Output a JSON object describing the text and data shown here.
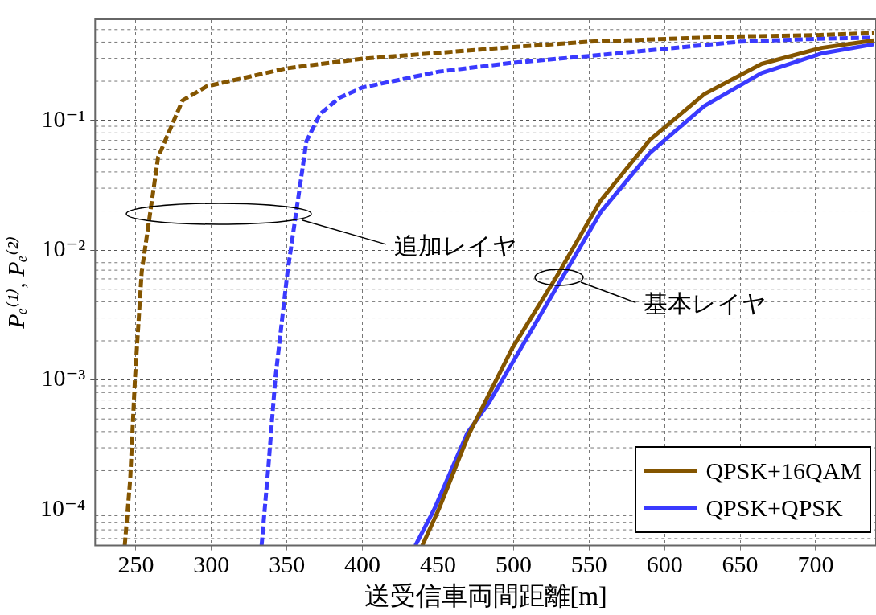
{
  "chart_data": {
    "type": "line",
    "xlabel": "送受信車両間距離[m]",
    "ylabel": "Pₑ⁽¹⁾, Pₑ⁽²⁾",
    "annotations": [
      "追加レイヤ",
      "基本レイヤ"
    ],
    "xlim": [
      223,
      740
    ],
    "xticks": [
      250,
      300,
      350,
      400,
      450,
      500,
      550,
      600,
      650,
      700
    ],
    "ylim": [
      5.3e-05,
      0.6
    ],
    "log": "y",
    "yticks": [
      {
        "value": 0.1,
        "label": "10⁻¹"
      },
      {
        "value": 0.01,
        "label": "10⁻²"
      },
      {
        "value": 0.001,
        "label": "10⁻³"
      },
      {
        "value": 0.0001,
        "label": "10⁻⁴"
      }
    ],
    "grid": true,
    "legend": "bottom right",
    "marker": "none",
    "series": [
      {
        "name": "QPSK+16QAM",
        "color": "#845500",
        "line_style": "solid",
        "x": [
          439.6,
          450.4,
          470.2,
          499.1,
          528,
          557.6,
          590.2,
          626.3,
          664.2,
          703.8,
          738.5
        ],
        "values": [
          5.3e-05,
          0.0001,
          0.000377,
          0.00175,
          0.0061,
          0.024,
          0.0705,
          0.159,
          0.272,
          0.361,
          0.413
        ]
      },
      {
        "name": "QPSK+QPSK",
        "color": "#3a3aff",
        "line_style": "solid",
        "x": [
          435,
          447.7,
          469.4,
          483.8,
          557.7,
          590.2,
          626.3,
          664.2,
          703.8,
          738.5
        ],
        "values": [
          5.3e-05,
          0.000102,
          0.00039,
          0.00067,
          0.0196,
          0.0559,
          0.129,
          0.231,
          0.327,
          0.385
        ]
      },
      {
        "color": "#845500",
        "line_style": "dashed",
        "x": [
          242.6,
          246.2,
          249.3,
          253.8,
          264.7,
          280.8,
          297,
          349.4,
          400,
          500,
          550.5,
          650,
          700,
          738.5
        ],
        "values": [
          5.3e-05,
          0.000171,
          0.001,
          0.00676,
          0.052,
          0.142,
          0.183,
          0.251,
          0.298,
          0.367,
          0.404,
          0.443,
          0.453,
          0.47
        ]
      },
      {
        "color": "#3a3aff",
        "line_style": "dashed",
        "x": [
          333.2,
          337.7,
          342.2,
          350.3,
          362.9,
          372,
          384.6,
          400,
          450.4,
          500,
          550.5,
          650.6,
          700,
          736
        ],
        "values": [
          5.3e-05,
          0.000215,
          0.001,
          0.0067,
          0.069,
          0.112,
          0.149,
          0.179,
          0.237,
          0.278,
          0.313,
          0.404,
          0.424,
          0.433
        ]
      }
    ]
  }
}
